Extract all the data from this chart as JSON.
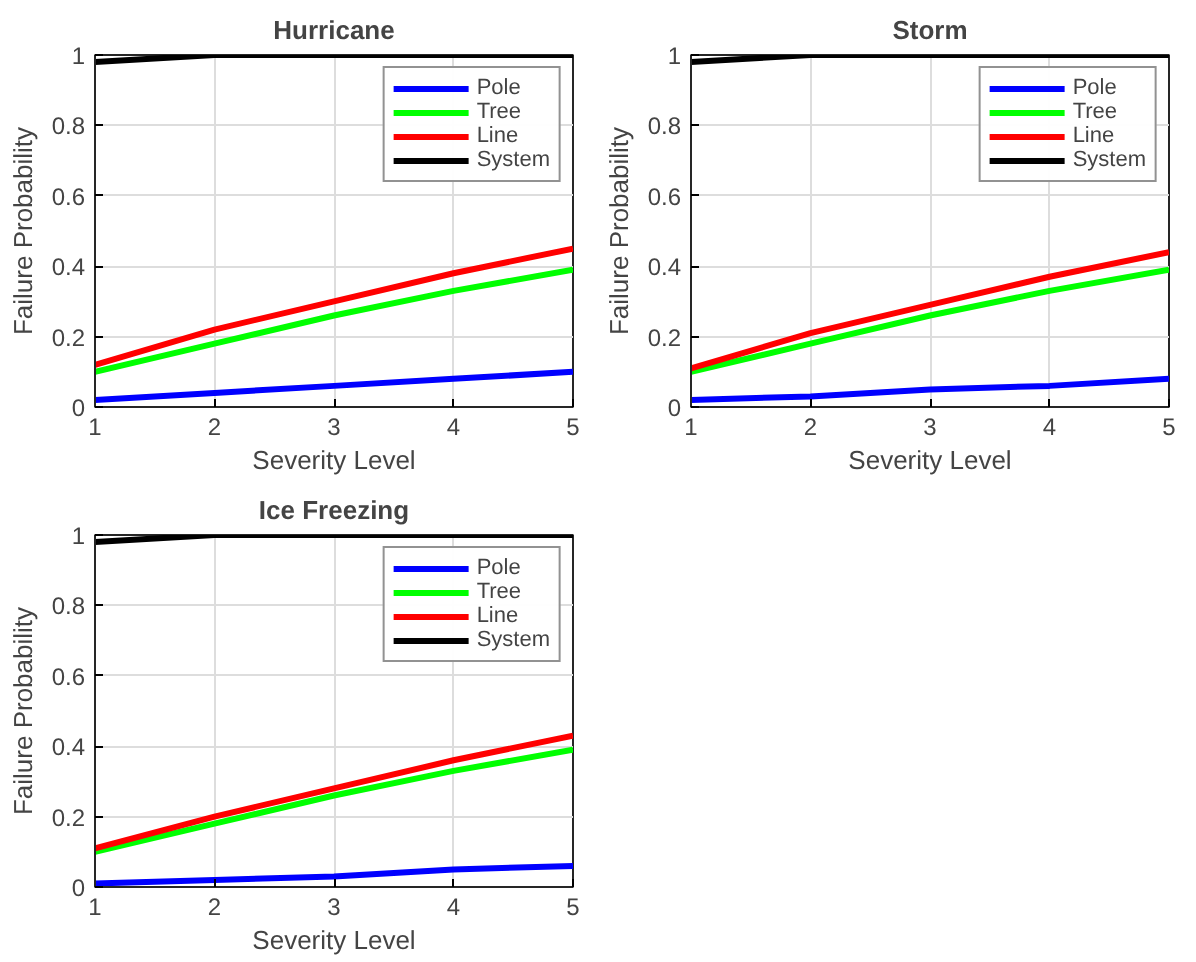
{
  "chart_data": [
    {
      "type": "line",
      "title": "Hurricane",
      "xlabel": "Severity Level",
      "ylabel": "Failure Probability",
      "x": [
        1,
        2,
        3,
        4,
        5
      ],
      "xlim": [
        1,
        5
      ],
      "xticks": [
        1,
        2,
        3,
        4,
        5
      ],
      "ylim": [
        0,
        1
      ],
      "yticks": [
        0,
        0.2,
        0.4,
        0.6,
        0.8,
        1
      ],
      "grid": true,
      "legend": "top right",
      "series": [
        {
          "name": "Pole",
          "color": "#0000ff",
          "values": [
            0.02,
            0.04,
            0.06,
            0.08,
            0.1
          ]
        },
        {
          "name": "Tree",
          "color": "#00ff00",
          "values": [
            0.1,
            0.18,
            0.26,
            0.33,
            0.39
          ]
        },
        {
          "name": "Line",
          "color": "#ff0000",
          "values": [
            0.12,
            0.22,
            0.3,
            0.38,
            0.45
          ]
        },
        {
          "name": "System",
          "color": "#000000",
          "values": [
            0.98,
            1,
            1,
            1,
            1
          ]
        }
      ]
    },
    {
      "type": "line",
      "title": "Storm",
      "xlabel": "Severity Level",
      "ylabel": "Failure Probability",
      "x": [
        1,
        2,
        3,
        4,
        5
      ],
      "xlim": [
        1,
        5
      ],
      "xticks": [
        1,
        2,
        3,
        4,
        5
      ],
      "ylim": [
        0,
        1
      ],
      "yticks": [
        0,
        0.2,
        0.4,
        0.6,
        0.8,
        1
      ],
      "grid": true,
      "legend": "top right",
      "series": [
        {
          "name": "Pole",
          "color": "#0000ff",
          "values": [
            0.02,
            0.03,
            0.05,
            0.06,
            0.08
          ]
        },
        {
          "name": "Tree",
          "color": "#00ff00",
          "values": [
            0.1,
            0.18,
            0.26,
            0.33,
            0.39
          ]
        },
        {
          "name": "Line",
          "color": "#ff0000",
          "values": [
            0.11,
            0.21,
            0.29,
            0.37,
            0.44
          ]
        },
        {
          "name": "System",
          "color": "#000000",
          "values": [
            0.98,
            1,
            1,
            1,
            1
          ]
        }
      ]
    },
    {
      "type": "line",
      "title": "Ice Freezing",
      "xlabel": "Severity Level",
      "ylabel": "Failure Probability",
      "x": [
        1,
        2,
        3,
        4,
        5
      ],
      "xlim": [
        1,
        5
      ],
      "xticks": [
        1,
        2,
        3,
        4,
        5
      ],
      "ylim": [
        0,
        1
      ],
      "yticks": [
        0,
        0.2,
        0.4,
        0.6,
        0.8,
        1
      ],
      "grid": true,
      "legend": "top right",
      "series": [
        {
          "name": "Pole",
          "color": "#0000ff",
          "values": [
            0.01,
            0.02,
            0.03,
            0.05,
            0.06
          ]
        },
        {
          "name": "Tree",
          "color": "#00ff00",
          "values": [
            0.1,
            0.18,
            0.26,
            0.33,
            0.39
          ]
        },
        {
          "name": "Line",
          "color": "#ff0000",
          "values": [
            0.11,
            0.2,
            0.28,
            0.36,
            0.43
          ]
        },
        {
          "name": "System",
          "color": "#000000",
          "values": [
            0.98,
            1,
            1,
            1,
            1
          ]
        }
      ]
    }
  ]
}
